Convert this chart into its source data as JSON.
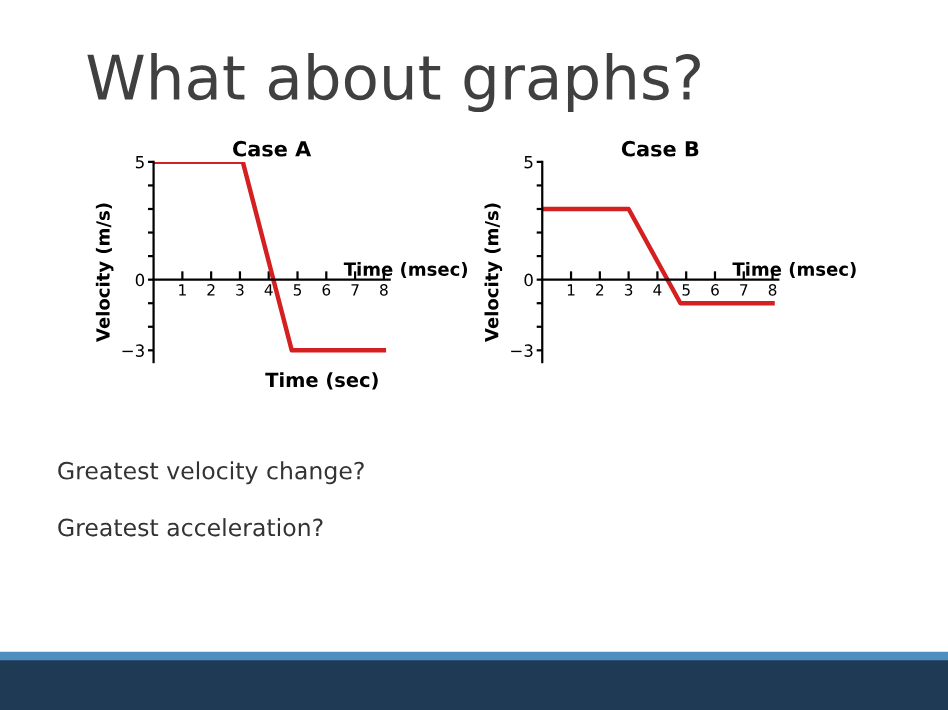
{
  "chart_data": [
    {
      "type": "line",
      "title": "Case A",
      "xlabel": "Time (msec)",
      "ylabel": "Velocity (m/s)",
      "annotations": [
        "What about graphs?",
        "Time (sec)",
        "Greatest velocity change?",
        "Greatest acceleration?"
      ],
      "series": [
        {
          "color": "#d42020",
          "x": [
            0,
            3.1,
            4.8,
            8
          ],
          "values": [
            5,
            5,
            -3,
            -3
          ]
        }
      ],
      "xlim": [
        0,
        8.2
      ],
      "ylim": [
        -3.5,
        5
      ],
      "xticks": [
        1,
        2,
        3,
        4,
        5,
        6,
        7,
        8
      ],
      "yticks": [
        {
          "value": -3,
          "label": "−3"
        },
        {
          "value": -2,
          "label": null
        },
        {
          "value": -1,
          "label": null
        },
        0,
        {
          "value": 1,
          "label": null
        },
        {
          "value": 2,
          "label": null
        },
        {
          "value": 3,
          "label": null
        },
        {
          "value": 4,
          "label": null
        },
        5
      ],
      "grid": false,
      "legend": false,
      "marker": "none",
      "line_style": "solid"
    },
    {
      "type": "line",
      "title": "Case B",
      "xlabel": "Time (msec)",
      "ylabel": "Velocity (m/s)",
      "series": [
        {
          "color": "#d42020",
          "x": [
            0,
            3,
            4.8,
            8
          ],
          "values": [
            3,
            3,
            -1,
            -1
          ]
        }
      ],
      "xlim": [
        0,
        8.2
      ],
      "ylim": [
        -3.5,
        5
      ],
      "xticks": [
        1,
        2,
        3,
        4,
        5,
        6,
        7,
        8
      ],
      "yticks": [
        {
          "value": -3,
          "label": "−3"
        },
        {
          "value": -2,
          "label": null
        },
        {
          "value": -1,
          "label": null
        },
        0,
        {
          "value": 1,
          "label": null
        },
        {
          "value": 2,
          "label": null
        },
        {
          "value": 3,
          "label": null
        },
        {
          "value": 4,
          "label": null
        },
        5
      ],
      "grid": false,
      "legend": false,
      "marker": "none",
      "line_style": "solid"
    }
  ]
}
